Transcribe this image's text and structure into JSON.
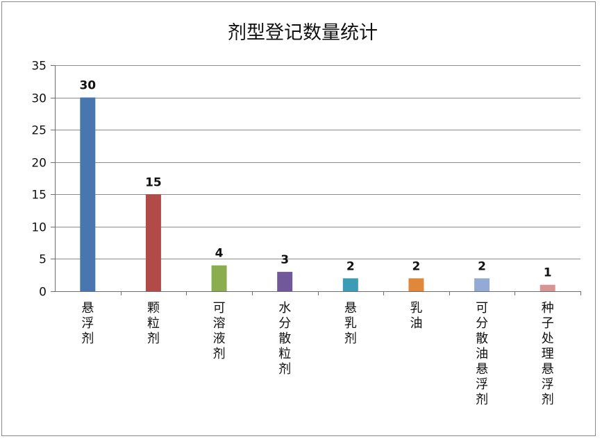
{
  "chart_data": {
    "type": "bar",
    "title": "剂型登记数量统计",
    "categories": [
      "悬浮剂",
      "颗粒剂",
      "可溶液剂",
      "水分散粒剂",
      "悬乳剂",
      "乳油",
      "可分散油悬浮剂",
      "种子处理悬浮剂"
    ],
    "values": [
      30,
      15,
      4,
      3,
      2,
      2,
      2,
      1
    ],
    "colors": [
      "#4a76b0",
      "#b24a47",
      "#8cad4e",
      "#71589a",
      "#3c9cb6",
      "#e1873a",
      "#93abd4",
      "#d99593"
    ],
    "ylim": [
      0,
      35
    ],
    "yticks": [
      0,
      5,
      10,
      15,
      20,
      25,
      30,
      35
    ],
    "grid": true,
    "data_labels": true
  }
}
